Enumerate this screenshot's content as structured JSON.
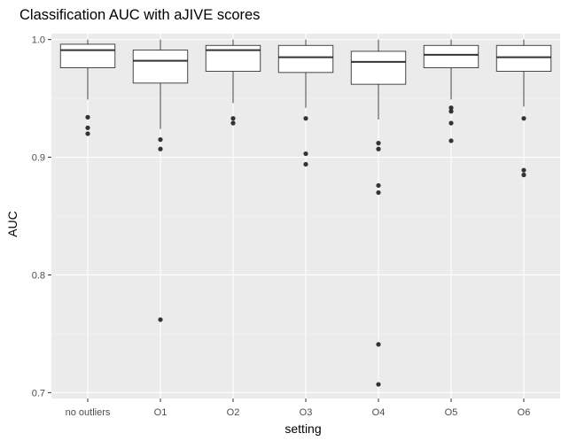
{
  "chart_data": {
    "type": "box",
    "title": "Classification AUC with aJIVE scores",
    "xlabel": "setting",
    "ylabel": "AUC",
    "ylim": [
      0.695,
      1.005
    ],
    "yticks": [
      0.7,
      0.8,
      0.9,
      1.0
    ],
    "ytick_labels": [
      "0.7",
      "0.8",
      "0.9",
      "1.0"
    ],
    "grid": true,
    "categories": [
      "no outliers",
      "O1",
      "O2",
      "O3",
      "O4",
      "O5",
      "O6"
    ],
    "boxes": [
      {
        "category": "no outliers",
        "whisker_low": 0.949,
        "q1": 0.976,
        "median": 0.991,
        "q3": 0.996,
        "whisker_high": 1.0,
        "outliers": [
          0.934,
          0.925,
          0.92
        ]
      },
      {
        "category": "O1",
        "whisker_low": 0.924,
        "q1": 0.963,
        "median": 0.982,
        "q3": 0.991,
        "whisker_high": 1.0,
        "outliers": [
          0.915,
          0.907,
          0.762
        ]
      },
      {
        "category": "O2",
        "whisker_low": 0.946,
        "q1": 0.973,
        "median": 0.991,
        "q3": 0.995,
        "whisker_high": 1.0,
        "outliers": [
          0.933,
          0.929
        ]
      },
      {
        "category": "O3",
        "whisker_low": 0.942,
        "q1": 0.972,
        "median": 0.985,
        "q3": 0.995,
        "whisker_high": 1.0,
        "outliers": [
          0.933,
          0.903,
          0.894
        ]
      },
      {
        "category": "O4",
        "whisker_low": 0.932,
        "q1": 0.962,
        "median": 0.981,
        "q3": 0.99,
        "whisker_high": 1.0,
        "outliers": [
          0.912,
          0.907,
          0.876,
          0.87,
          0.741,
          0.707
        ]
      },
      {
        "category": "O5",
        "whisker_low": 0.949,
        "q1": 0.976,
        "median": 0.987,
        "q3": 0.995,
        "whisker_high": 1.0,
        "outliers": [
          0.942,
          0.939,
          0.929,
          0.914
        ]
      },
      {
        "category": "O6",
        "whisker_low": 0.943,
        "q1": 0.973,
        "median": 0.985,
        "q3": 0.995,
        "whisker_high": 1.0,
        "outliers": [
          0.933,
          0.889,
          0.885
        ]
      }
    ],
    "colors": {
      "panel_background": "#ebebeb",
      "grid_major": "#ffffff",
      "grid_minor": "#f4f4f4",
      "box_fill": "#ffffff",
      "box_stroke": "#333333",
      "outlier": "#333333"
    }
  }
}
